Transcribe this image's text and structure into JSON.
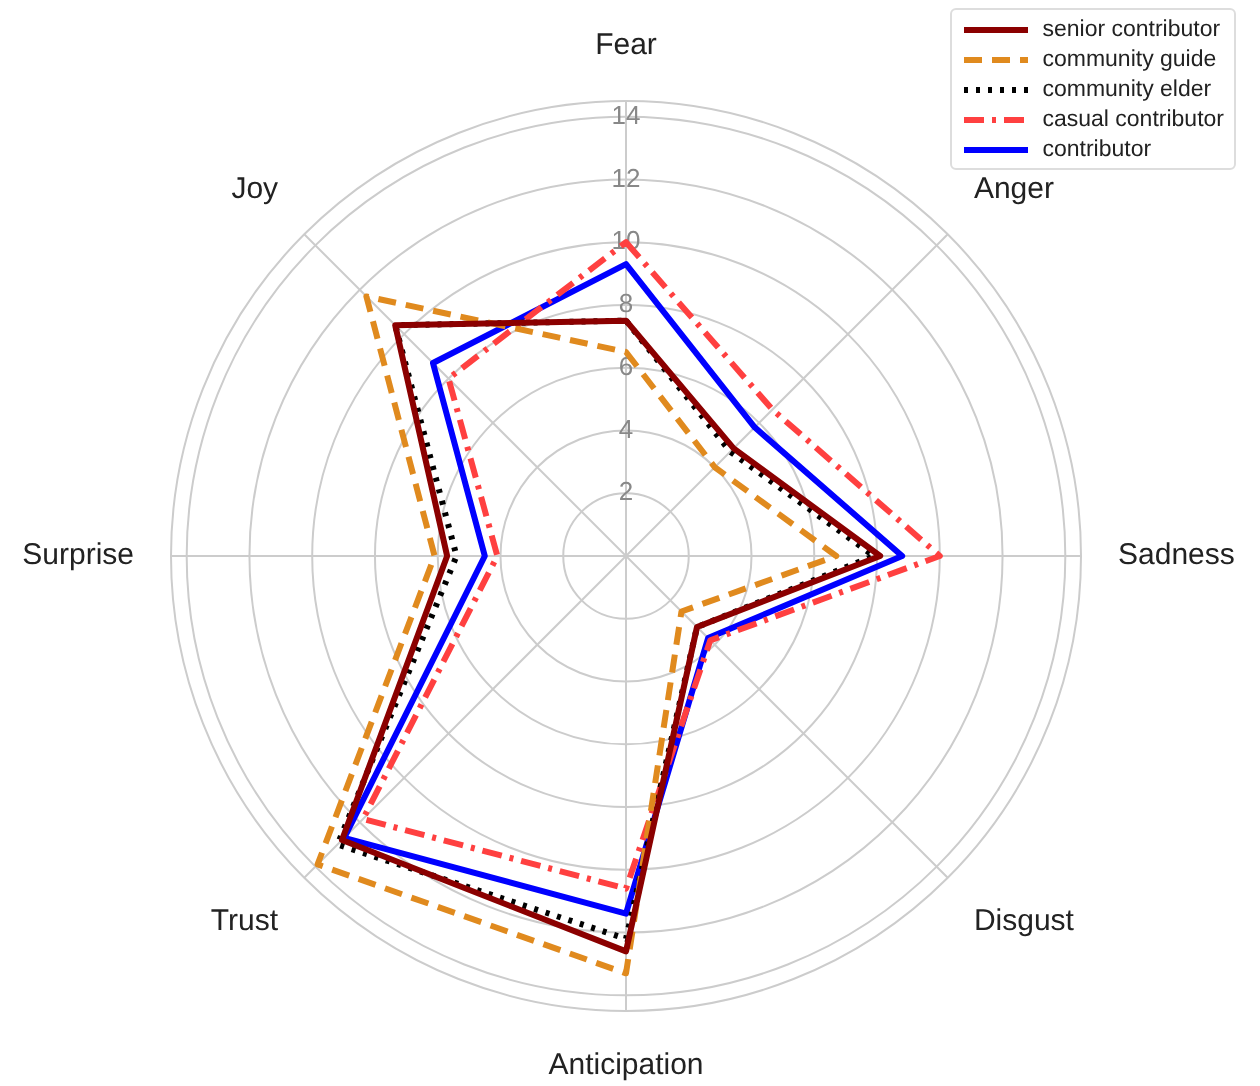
{
  "chart_data": {
    "type": "radar",
    "categories": [
      "Fear",
      "Anger",
      "Sadness",
      "Disgust",
      "Anticipation",
      "Trust",
      "Surprise",
      "Joy"
    ],
    "series": [
      {
        "name": "senior contributor",
        "color": "#8b0000",
        "line_style": "solid",
        "values": [
          7.5,
          4.85,
          8.1,
          3.2,
          12.6,
          12.8,
          5.7,
          10.4
        ]
      },
      {
        "name": "community guide",
        "color": "#e08a1e",
        "line_style": "dashed",
        "values": [
          6.5,
          4.0,
          6.7,
          2.5,
          13.3,
          13.9,
          6.1,
          11.7
        ]
      },
      {
        "name": "community elder",
        "color": "#000000",
        "line_style": "dotted",
        "values": [
          7.5,
          4.7,
          7.9,
          3.2,
          12.2,
          13.0,
          5.4,
          10.4
        ]
      },
      {
        "name": "casual contributor",
        "color": "#ff4040",
        "line_style": "dashdot",
        "values": [
          10,
          6.6,
          10,
          3.8,
          10.6,
          11.85,
          4.1,
          8.0
        ]
      },
      {
        "name": "contributor",
        "color": "#0000ff",
        "line_style": "solid",
        "values": [
          9.3,
          5.8,
          8.8,
          3.7,
          11.4,
          12.7,
          4.5,
          8.7
        ]
      }
    ],
    "ylim": [
      0,
      14.5
    ],
    "yticks": [
      2,
      4,
      6,
      8,
      10,
      12,
      14
    ],
    "grid": true,
    "legend": "top right",
    "marker": "none"
  }
}
